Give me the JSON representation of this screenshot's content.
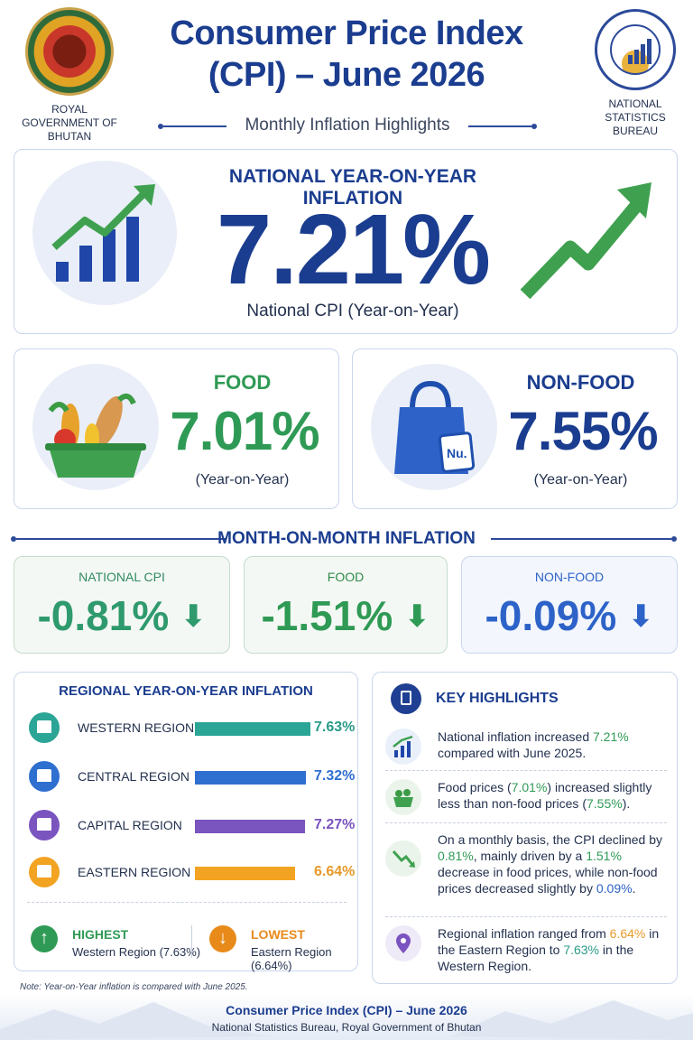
{
  "header": {
    "left_org": "ROYAL GOVERNMENT OF BHUTAN",
    "right_org": "NATIONAL STATISTICS BUREAU",
    "title": "Consumer Price Index (CPI) – June 2026",
    "subtitle": "Monthly Inflation Highlights"
  },
  "yoy": {
    "heading": "NATIONAL YEAR-ON-YEAR INFLATION",
    "value": "7.21%",
    "caption": "National CPI (Year-on-Year)"
  },
  "food": {
    "label": "FOOD",
    "value": "7.01%",
    "caption": "(Year-on-Year)",
    "basket_label": ""
  },
  "nonfood": {
    "label": "NON-FOOD",
    "value": "7.55%",
    "caption": "(Year-on-Year)",
    "tag_label": "Nu."
  },
  "mom": {
    "title": "MONTH-ON-MONTH INFLATION",
    "cards": [
      {
        "label": "NATIONAL CPI",
        "value": "-0.81%",
        "color": "#2f9a6d"
      },
      {
        "label": "FOOD",
        "value": "-1.51%",
        "color": "#2f9a55"
      },
      {
        "label": "NON-FOOD",
        "value": "-0.09%",
        "color": "#2d63c8"
      }
    ],
    "arrow": "⬇"
  },
  "regional": {
    "title": "REGIONAL YEAR-ON-YEAR INFLATION",
    "regions": [
      {
        "name": "WESTERN REGION",
        "value": "7.63%",
        "rate": 7.63,
        "color": "#2aa596"
      },
      {
        "name": "CENTRAL REGION",
        "value": "7.32%",
        "rate": 7.32,
        "color": "#2f6fd0"
      },
      {
        "name": "CAPITAL REGION",
        "value": "7.27%",
        "rate": 7.27,
        "color": "#7a54bf"
      },
      {
        "name": "EASTERN REGION",
        "value": "6.64%",
        "rate": 6.64,
        "color": "#f2a321"
      }
    ],
    "highest": {
      "label": "HIGHEST",
      "detail": "Western Region (7.63%)",
      "arrow": "↑",
      "color": "#2f9a55"
    },
    "lowest": {
      "label": "LOWEST",
      "detail": "Eastern Region (6.64%)",
      "arrow": "↓",
      "color": "#e88a1a"
    }
  },
  "key_highlights": {
    "title": "KEY HIGHLIGHTS",
    "items": [
      {
        "pre": "National inflation increased ",
        "hl1": "7.21%",
        "mid": " compared with June 2025.",
        "hl2": "",
        "post": "",
        "hl3": "",
        "end": ""
      },
      {
        "pre": "Food prices (",
        "hl1": "7.01%",
        "mid": ") increased slightly less than non-food prices (",
        "hl2": "7.55%",
        "post": ").",
        "hl3": "",
        "end": ""
      },
      {
        "pre": "On a monthly basis, the CPI declined by ",
        "hl1": "0.81%",
        "mid": ", mainly driven by a ",
        "hl2": "1.51%",
        "post": " decrease in food prices, while non-food prices decreased slightly by ",
        "hl3": "0.09%",
        "end": "."
      },
      {
        "pre": "Regional inflation ranged from ",
        "hl1": "6.64%",
        "mid": " in the Eastern Region to ",
        "hl2": "7.63%",
        "post": " in the Western Region.",
        "hl3": "",
        "end": ""
      }
    ]
  },
  "note": "Note: Year-on-Year inflation is compared with June 2025.",
  "footer": {
    "title": "Consumer Price Index (CPI) – June 2026",
    "subtitle": "National Statistics Bureau, Royal Government of Bhutan"
  }
}
